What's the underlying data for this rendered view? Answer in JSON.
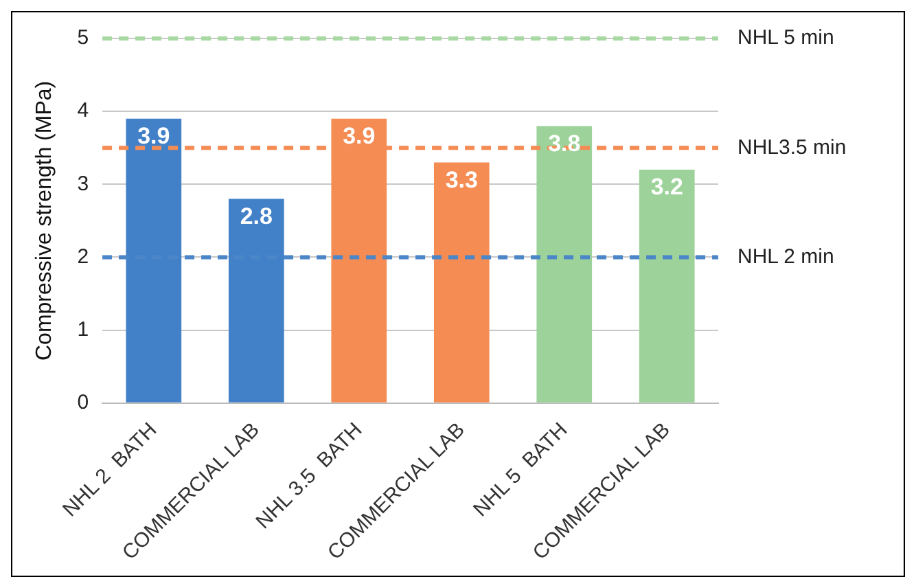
{
  "chart_data": {
    "type": "bar",
    "ylabel": "Compressive strength (MPa)",
    "categories": [
      "NHL 2  BATH",
      "COMMERCIAL LAB",
      "NHL 3.5  BATH",
      "COMMERCIAL LAB",
      "NHL 5  BATH",
      "COMMERCIAL LAB"
    ],
    "values": [
      3.9,
      2.8,
      3.9,
      3.3,
      3.8,
      3.2
    ],
    "colors": [
      "#4280c8",
      "#4280c8",
      "#f48c54",
      "#f48c54",
      "#9dd39a",
      "#9dd39a"
    ],
    "ylim": [
      0,
      5
    ],
    "yticks": [
      0,
      1,
      2,
      3,
      4,
      5
    ],
    "grid": "y",
    "legend": false,
    "data_labels": true,
    "ref_lines": [
      {
        "axis": "y",
        "value": 5,
        "label": "NHL 5 min",
        "color": "#a8d9a2",
        "line_style": "dashed"
      },
      {
        "axis": "y",
        "value": 3.5,
        "label": "NHL3.5 min",
        "color": "#f48c54",
        "line_style": "dashed"
      },
      {
        "axis": "y",
        "value": 2,
        "label": "NHL 2 min",
        "color": "#4a86c8",
        "line_style": "dashed"
      }
    ]
  }
}
